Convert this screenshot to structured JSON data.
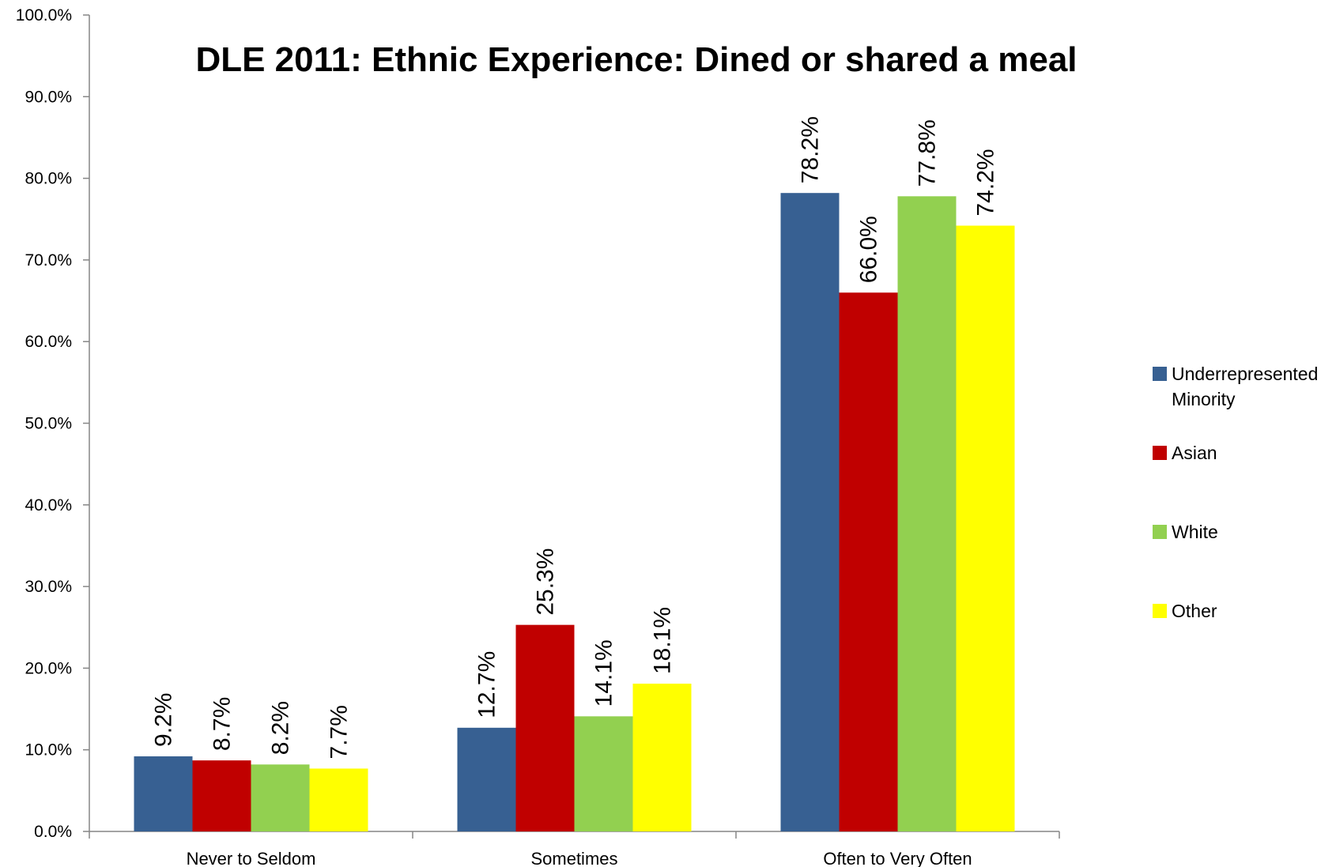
{
  "chart_data": {
    "type": "bar",
    "title": "DLE 2011: Ethnic Experience: Dined or shared a meal",
    "xlabel": "",
    "ylabel": "",
    "categories": [
      "Never to Seldom",
      "Sometimes",
      "Often to Very Often"
    ],
    "ylim": [
      0,
      100
    ],
    "y_ticks": [
      "0.0%",
      "10.0%",
      "20.0%",
      "30.0%",
      "40.0%",
      "50.0%",
      "60.0%",
      "70.0%",
      "80.0%",
      "90.0%",
      "100.0%"
    ],
    "grid": false,
    "legend_position": "right",
    "series": [
      {
        "name": "Underrepresented Minority",
        "name_lines": [
          "Underrepresented",
          "Minority"
        ],
        "color": "#376092",
        "values": [
          9.2,
          12.7,
          78.2
        ],
        "labels": [
          "9.2%",
          "12.7%",
          "78.2%"
        ]
      },
      {
        "name": "Asian",
        "name_lines": [
          "Asian"
        ],
        "color": "#c00000",
        "values": [
          8.7,
          25.3,
          66.0
        ],
        "labels": [
          "8.7%",
          "25.3%",
          "66.0%"
        ]
      },
      {
        "name": "White",
        "name_lines": [
          "White"
        ],
        "color": "#92d050",
        "values": [
          8.2,
          14.1,
          77.8
        ],
        "labels": [
          "8.2%",
          "14.1%",
          "77.8%"
        ]
      },
      {
        "name": "Other",
        "name_lines": [
          "Other"
        ],
        "color": "#ffff00",
        "values": [
          7.7,
          18.1,
          74.2
        ],
        "labels": [
          "7.7%",
          "18.1%",
          "74.2%"
        ]
      }
    ]
  }
}
